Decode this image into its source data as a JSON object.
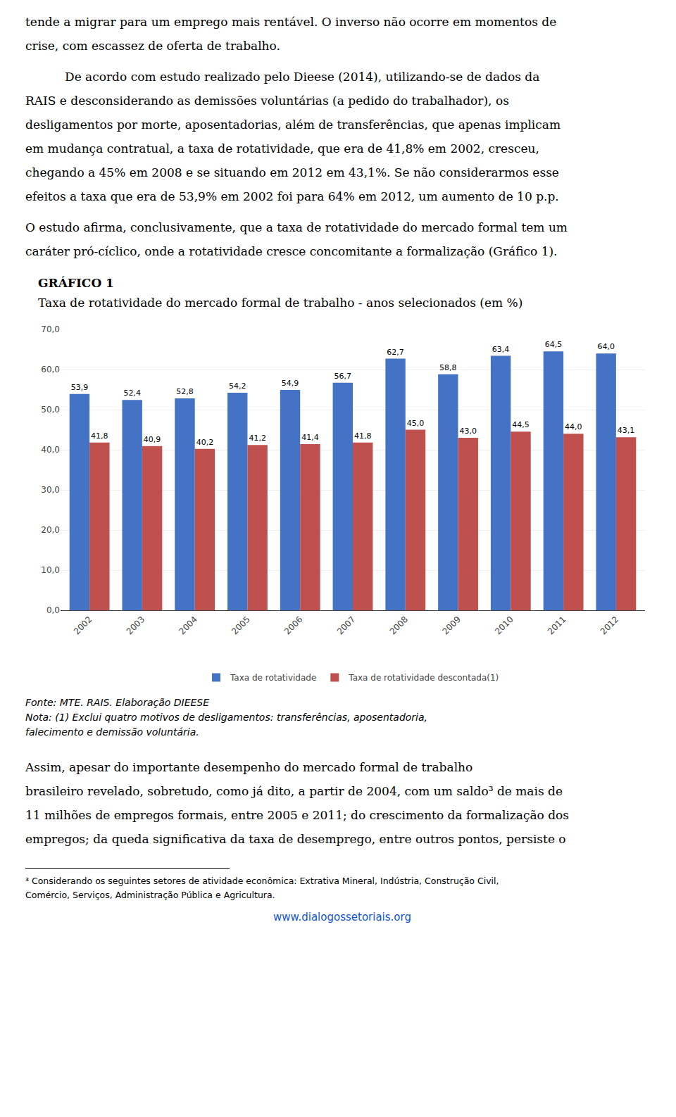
{
  "page_text": {
    "before": [
      [
        "tende a migrar para um emprego mais rentável. O inverso não ocorre em momentos de",
        "crise, com escassez de oferta de trabalho."
      ],
      [
        "De acordo com estudo realizado pelo Dieese (2014), utilizando-se de dados da",
        "RAIS e desconsiderando as demissões voluntárias (a pedido do trabalhador), os",
        "desligamentos por morte, aposentadorias, além de transferências, que apenas implicam",
        "em mudança contratual, a taxa de rotatividade, que era de 41,8% em 2002, cresceu,",
        "chegando a 45% em 2008 e se situando em 2012 em 43,1%. Se não considerarmos esse",
        "efeitos a taxa que era de 53,9% em 2002 foi para 64% em 2012, um aumento de 10 p.p."
      ],
      [
        "O estudo afirma, conclusivamente, que a taxa de rotatividade do mercado formal tem um",
        "caráter pró-cíclico, onde a rotatividade cresce concomitante a formalização (Gráfico 1)."
      ]
    ],
    "after": [
      "Assim, apesar do importante desempenho do mercado formal de trabalho",
      "brasileiro revelado, sobretudo, como já dito, a partir de 2004, com um saldo³ de mais de",
      "11 milhões de empregos formais, entre 2005 e 2011; do crescimento da formalização dos",
      "empregos; da queda significativa da taxa de desemprego, entre outros pontos, persiste o"
    ],
    "footnote": [
      "³ Considerando os seguintes setores de atividade econômica: Extrativa Mineral, Indústria, Construção Civil,",
      "Comércio, Serviços, Administração Pública e Agricultura."
    ],
    "link": "www.dialogossetoriais.org",
    "link_color": "#1155CC"
  },
  "chart_data": {
    "type": "bar",
    "title": "GRÁFICO 1",
    "subtitle": "Taxa de rotatividade do mercado formal de trabalho - anos selecionados (em %)",
    "categories": [
      "2002",
      "2003",
      "2004",
      "2005",
      "2006",
      "2007",
      "2008",
      "2009",
      "2010",
      "2011",
      "2012"
    ],
    "series": [
      {
        "name": "Taxa de rotatividade",
        "color": "#4472C4",
        "values": [
          53.9,
          52.4,
          52.8,
          54.2,
          54.9,
          56.7,
          62.7,
          58.8,
          63.4,
          64.5,
          64.0
        ],
        "value_labels": [
          "53,9",
          "52,4",
          "52,8",
          "54,2",
          "54,9",
          "56,7",
          "62,7",
          "58,8",
          "63,4",
          "64,5",
          "64,0"
        ]
      },
      {
        "name": "Taxa de rotatividade descontada(1)",
        "color": "#C0504D",
        "values": [
          41.8,
          40.9,
          40.2,
          41.2,
          41.4,
          41.8,
          45.0,
          43.0,
          44.5,
          44.0,
          43.1
        ],
        "value_labels": [
          "41,8",
          "40,9",
          "40,2",
          "41,2",
          "41,4",
          "41,8",
          "45,0",
          "43,0",
          "44,5",
          "44,0",
          "43,1"
        ]
      }
    ],
    "ylim": [
      0,
      70
    ],
    "yticks": [
      {
        "value": 0,
        "label": "0,0"
      },
      {
        "value": 10,
        "label": "10,0"
      },
      {
        "value": 20,
        "label": "20,0"
      },
      {
        "value": 30,
        "label": "30,0"
      },
      {
        "value": 40,
        "label": "40,0"
      },
      {
        "value": 50,
        "label": "50,0"
      },
      {
        "value": 60,
        "label": "60,0"
      },
      {
        "value": 70,
        "label": "70,0"
      }
    ],
    "grid": true,
    "legend": "bottom",
    "data_labels": true,
    "annotations": [
      "Fonte: MTE. RAIS. Elaboração DIEESE",
      "Nota: (1) Exclui quatro motivos de desligamentos: transferências, aposentadoria,",
      "falecimento e demissão voluntária."
    ]
  }
}
